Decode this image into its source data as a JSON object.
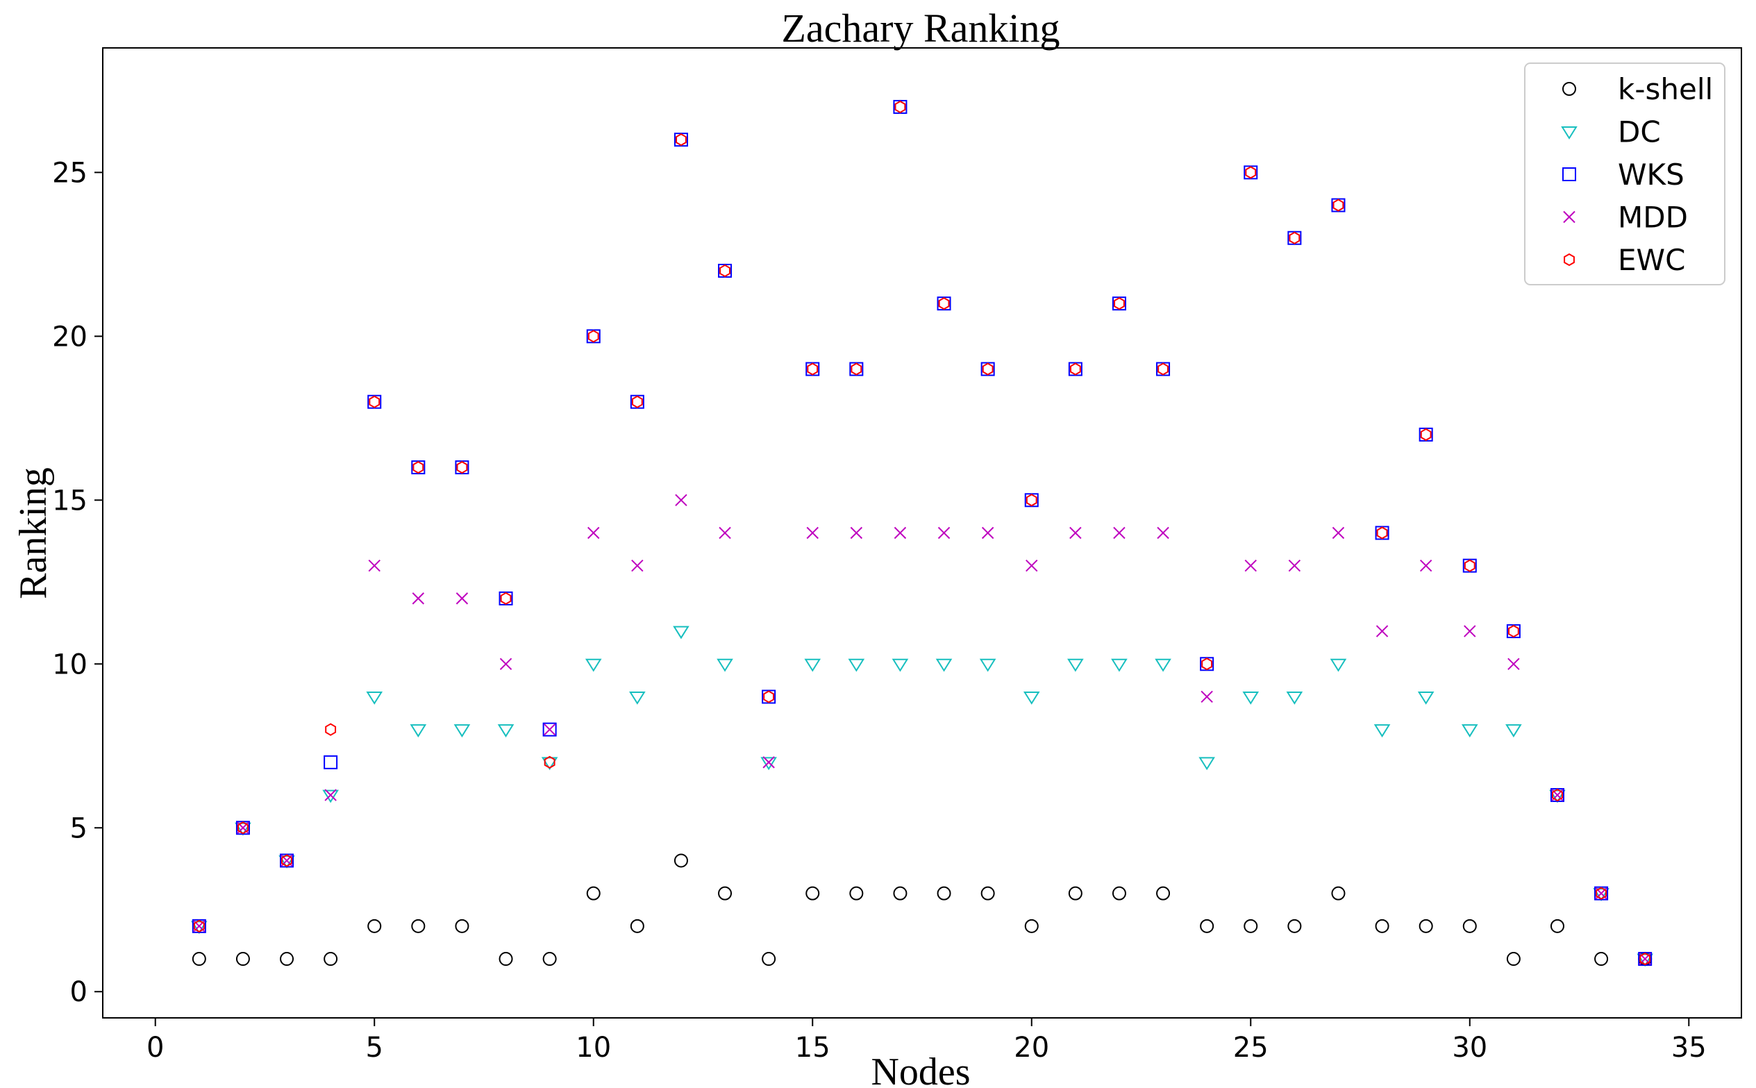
{
  "chart_data": {
    "type": "scatter",
    "title": "Zachary Ranking",
    "xlabel": "Nodes",
    "ylabel": "Ranking",
    "xlim": [
      -1.2,
      36.2
    ],
    "ylim": [
      -0.8,
      28.8
    ],
    "xticks": [
      0,
      5,
      10,
      15,
      20,
      25,
      30,
      35
    ],
    "yticks": [
      0,
      5,
      10,
      15,
      20,
      25
    ],
    "grid": false,
    "legend_position": "top-right",
    "x": [
      1,
      2,
      3,
      4,
      5,
      6,
      7,
      8,
      9,
      10,
      11,
      12,
      13,
      14,
      15,
      16,
      17,
      18,
      19,
      20,
      21,
      22,
      23,
      24,
      25,
      26,
      27,
      28,
      29,
      30,
      31,
      32,
      33,
      34
    ],
    "series": [
      {
        "name": "k-shell",
        "marker": "circle",
        "color": "#000000",
        "values": [
          1,
          1,
          1,
          1,
          2,
          2,
          2,
          1,
          1,
          3,
          2,
          4,
          3,
          1,
          3,
          3,
          3,
          3,
          3,
          2,
          3,
          3,
          3,
          2,
          2,
          2,
          3,
          2,
          2,
          2,
          1,
          2,
          1,
          1
        ]
      },
      {
        "name": "DC",
        "marker": "triangle-down",
        "color": "#17bfbf",
        "values": [
          2,
          5,
          4,
          6,
          9,
          8,
          8,
          8,
          7,
          10,
          9,
          11,
          10,
          7,
          10,
          10,
          10,
          10,
          10,
          9,
          10,
          10,
          10,
          7,
          9,
          9,
          10,
          8,
          9,
          8,
          8,
          6,
          3,
          1
        ]
      },
      {
        "name": "WKS",
        "marker": "square",
        "color": "#0000ff",
        "values": [
          2,
          5,
          4,
          7,
          18,
          16,
          16,
          12,
          8,
          20,
          18,
          26,
          22,
          9,
          19,
          19,
          27,
          21,
          19,
          15,
          19,
          21,
          19,
          10,
          25,
          23,
          24,
          14,
          17,
          13,
          11,
          6,
          3,
          1
        ]
      },
      {
        "name": "MDD",
        "marker": "x",
        "color": "#bf00bf",
        "values": [
          2,
          5,
          4,
          6,
          13,
          12,
          12,
          10,
          8,
          14,
          13,
          15,
          14,
          7,
          14,
          14,
          14,
          14,
          14,
          13,
          14,
          14,
          14,
          9,
          13,
          13,
          14,
          11,
          13,
          11,
          10,
          6,
          3,
          1
        ]
      },
      {
        "name": "EWC",
        "marker": "hexagon",
        "color": "#ff0000",
        "values": [
          2,
          5,
          4,
          8,
          18,
          16,
          16,
          12,
          7,
          20,
          18,
          26,
          22,
          9,
          19,
          19,
          27,
          21,
          19,
          15,
          19,
          21,
          19,
          10,
          25,
          23,
          24,
          14,
          17,
          13,
          11,
          6,
          3,
          1
        ]
      }
    ]
  }
}
